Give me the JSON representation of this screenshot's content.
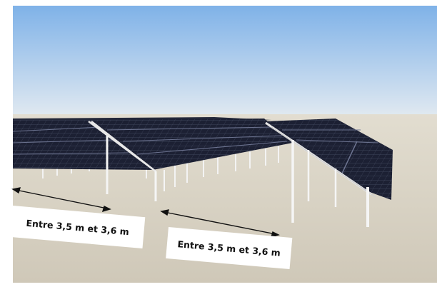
{
  "labels": [
    {
      "text": "Entre 3,5 m et 3,6 m"
    },
    {
      "text": "Entre 3,5 m et 3,6 m"
    }
  ],
  "colors": {
    "sky_top": "#7fb2e8",
    "sky_bottom": "#dfe7ee",
    "ground": "#d8d2c4",
    "panel": "#1c2033",
    "panel_grid": "#5a6178",
    "post": "#f2f2f2",
    "arrow": "#111111"
  }
}
